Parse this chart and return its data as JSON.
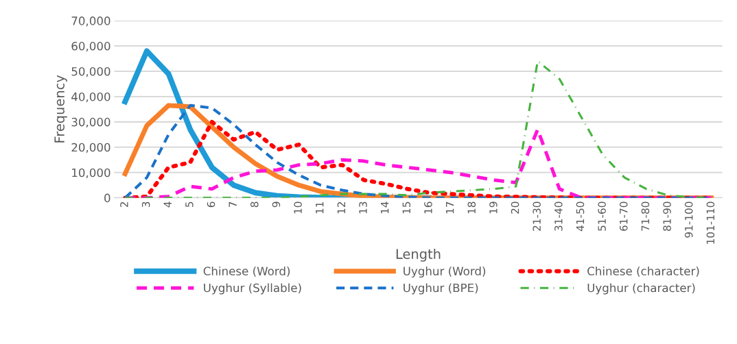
{
  "chart_data": {
    "type": "line",
    "xlabel": "Length",
    "ylabel": "Frequency",
    "categories": [
      "2",
      "3",
      "4",
      "5",
      "6",
      "7",
      "8",
      "9",
      "10",
      "11",
      "12",
      "13",
      "14",
      "15",
      "16",
      "17",
      "18",
      "19",
      "20",
      "21-30",
      "31-40",
      "41-50",
      "51-60",
      "61-70",
      "71-80",
      "81-90",
      "91-100",
      "101-110"
    ],
    "series": [
      {
        "name": "Chinese (Word)",
        "color": "#1f9bd7",
        "line_style": "solid",
        "values": [
          38000,
          58000,
          49000,
          27000,
          12000,
          5000,
          2000,
          800,
          300,
          100,
          0,
          0,
          0,
          0,
          0,
          null,
          null,
          null,
          null,
          null,
          null,
          null,
          null,
          null,
          null,
          null,
          null,
          null
        ]
      },
      {
        "name": "Uyghur (Word)",
        "color": "#f8802a",
        "line_style": "solid",
        "values": [
          9500,
          28500,
          36500,
          36000,
          28000,
          20000,
          13500,
          8500,
          5000,
          2500,
          1500,
          700,
          300,
          100,
          0,
          0,
          0,
          0,
          0,
          0,
          0,
          0,
          0,
          0,
          0,
          0,
          0,
          0
        ]
      },
      {
        "name": "Chinese (character)",
        "color": "#ff0000",
        "line_style": "dotted",
        "values": [
          0,
          500,
          12000,
          14000,
          30000,
          23000,
          26000,
          19000,
          21000,
          12000,
          13000,
          7000,
          5500,
          3500,
          2000,
          1500,
          1000,
          500,
          400,
          200,
          100,
          0,
          0,
          0,
          0,
          0,
          0,
          0
        ]
      },
      {
        "name": "Uyghur (Syllable)",
        "color": "#ff14d8",
        "line_style": "dashed",
        "values": [
          0,
          0,
          500,
          4500,
          3500,
          8000,
          10500,
          11000,
          13000,
          13500,
          15000,
          14500,
          13000,
          12000,
          11000,
          10000,
          8500,
          7000,
          6000,
          27000,
          3500,
          0,
          0,
          0,
          0,
          0,
          0,
          0
        ]
      },
      {
        "name": "Uyghur (BPE)",
        "color": "#1a72c9",
        "line_style": "dashed",
        "values": [
          0,
          8000,
          25000,
          36500,
          35500,
          29000,
          21000,
          14000,
          9000,
          5000,
          3000,
          1500,
          800,
          300,
          0,
          0,
          0,
          0,
          0,
          0,
          0,
          0,
          0,
          0,
          0,
          0,
          0,
          0
        ]
      },
      {
        "name": "Uyghur (character)",
        "color": "#46b33e",
        "line_style": "dashdot",
        "values": [
          0,
          0,
          0,
          0,
          0,
          0,
          0,
          0,
          500,
          1000,
          1500,
          1500,
          1500,
          1000,
          2000,
          2500,
          3000,
          3500,
          4500,
          54000,
          47000,
          32000,
          17000,
          8000,
          3500,
          1000,
          200,
          0
        ]
      }
    ],
    "ylim": [
      0,
      70000
    ],
    "yticks": [
      {
        "value": 0,
        "label": "0"
      },
      {
        "value": 10000,
        "label": "10,000"
      },
      {
        "value": 20000,
        "label": "20,000"
      },
      {
        "value": 30000,
        "label": "30,000"
      },
      {
        "value": 40000,
        "label": "40,000"
      },
      {
        "value": 50000,
        "label": "50,000"
      },
      {
        "value": 60000,
        "label": "60,000"
      },
      {
        "value": 70000,
        "label": "70,000"
      }
    ],
    "grid": "y",
    "legend": "bottom"
  }
}
